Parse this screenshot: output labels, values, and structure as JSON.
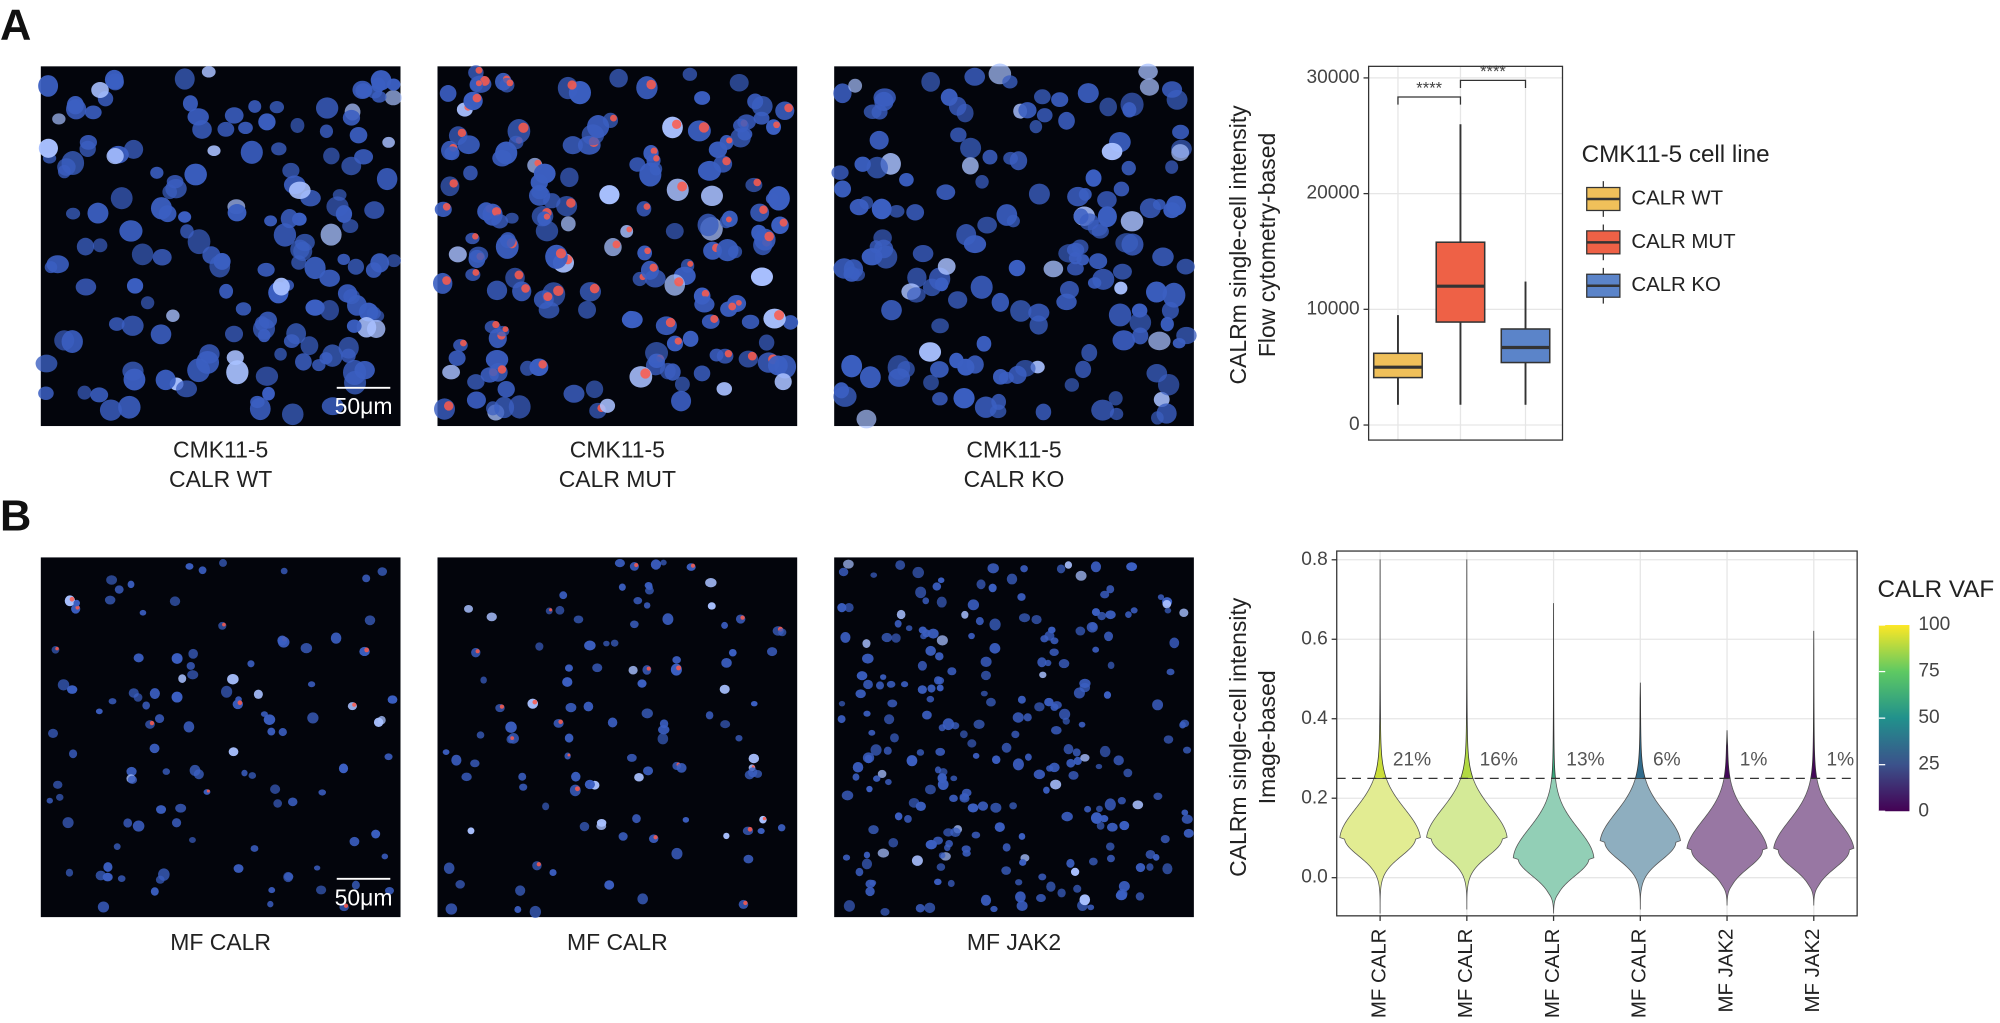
{
  "panels": [
    {
      "letter": "A",
      "captions": [
        [
          "CMK11-5",
          "CALR WT"
        ],
        [
          "CMK11-5",
          "CALR MUT"
        ],
        [
          "CMK11-5",
          "CALR KO"
        ]
      ],
      "scale_bar": "50μm"
    },
    {
      "letter": "B",
      "captions": [
        [
          "MF CALR"
        ],
        [
          "MF CALR"
        ],
        [
          "MF JAK2"
        ]
      ],
      "scale_bar": "50μm"
    }
  ],
  "chart_data": [
    {
      "type": "box",
      "ylabel": [
        "CALRm single-cell intensity",
        "Flow cytometry-based"
      ],
      "ylim": [
        -1300,
        31000
      ],
      "yticks": [
        0,
        10000,
        20000,
        30000
      ],
      "grid": true,
      "legend_title": "CMK11-5 cell line",
      "boxes": [
        {
          "name": "CALR WT",
          "color": "#f0c05a",
          "min": 1750,
          "q1": 4100,
          "median": 5000,
          "q3": 6200,
          "max": 9500
        },
        {
          "name": "CALR MUT",
          "color": "#ee6146",
          "min": 1750,
          "q1": 8900,
          "median": 12000,
          "q3": 15800,
          "max": 26000
        },
        {
          "name": "CALR KO",
          "color": "#5b84c9",
          "min": 1750,
          "q1": 5400,
          "median": 6700,
          "q3": 8300,
          "max": 12400
        }
      ],
      "annotations": [
        {
          "text": "****",
          "from": 0,
          "to": 1
        },
        {
          "text": "****",
          "from": 1,
          "to": 2
        }
      ]
    },
    {
      "type": "violin",
      "ylabel": [
        "CALRm single-cell intensity",
        "Image-based"
      ],
      "ylim": [
        -0.096,
        0.822
      ],
      "yticks": [
        {
          "value": 0,
          "label": "0.0"
        },
        0.2,
        0.4,
        0.6,
        0.8
      ],
      "grid": true,
      "categories": [
        "MF CALR",
        "MF CALR",
        "MF CALR",
        "MF CALR",
        "MF JAK2",
        "MF JAK2"
      ],
      "threshold": 0.25,
      "values": [
        21,
        16,
        13,
        6,
        1,
        1
      ],
      "value_labels": [
        "21%",
        "16%",
        "13%",
        "6%",
        "1%",
        "1%"
      ],
      "violins": [
        {
          "min": -0.09,
          "mode": 0.1,
          "max": 0.8,
          "vaf": 92
        },
        {
          "min": -0.08,
          "mode": 0.1,
          "max": 0.8,
          "vaf": 88
        },
        {
          "min": -0.09,
          "mode": 0.05,
          "max": 0.69,
          "vaf": 60
        },
        {
          "min": -0.08,
          "mode": 0.09,
          "max": 0.49,
          "vaf": 35
        },
        {
          "min": -0.07,
          "mode": 0.07,
          "max": 0.37,
          "vaf": 2
        },
        {
          "min": -0.07,
          "mode": 0.07,
          "max": 0.62,
          "vaf": 2
        }
      ],
      "colorbar_title": "CALR VAF",
      "colorbar_lim": [
        0,
        100
      ],
      "colorbar_ticks": [
        0,
        25,
        50,
        75,
        100
      ]
    }
  ]
}
